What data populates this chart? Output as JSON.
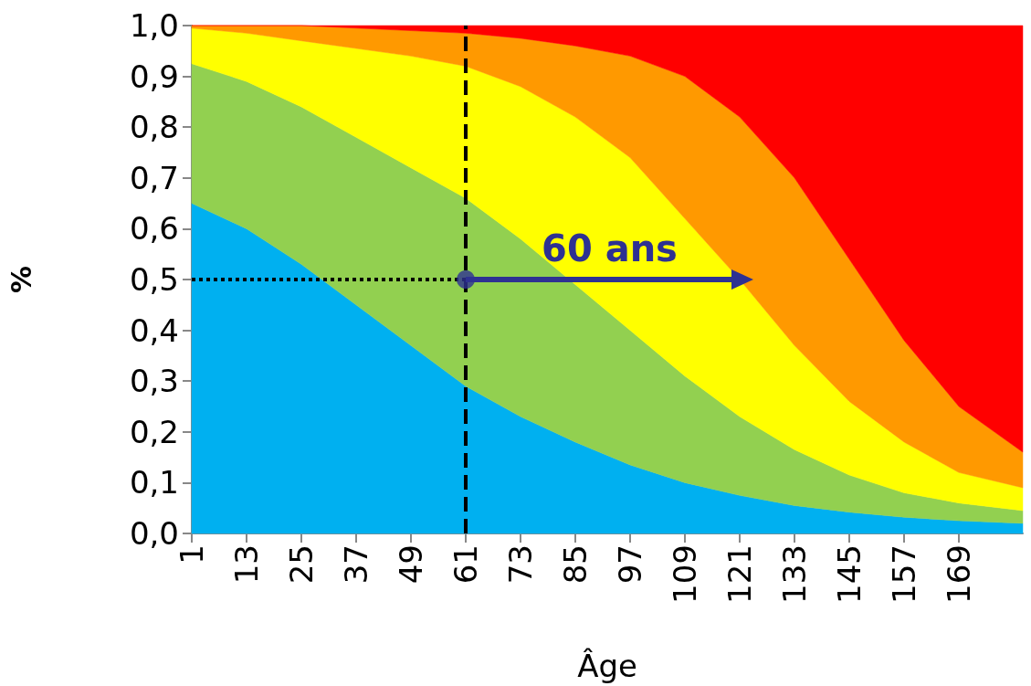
{
  "chart_data": {
    "type": "area",
    "stacked": true,
    "xlabel": "Âge",
    "ylabel": "%",
    "x": [
      1,
      13,
      25,
      37,
      49,
      61,
      73,
      85,
      97,
      109,
      121,
      133,
      145,
      157,
      169,
      183
    ],
    "xlim": [
      1,
      183
    ],
    "xticks": [
      1,
      13,
      25,
      37,
      49,
      61,
      73,
      85,
      97,
      109,
      121,
      133,
      145,
      157,
      169
    ],
    "ylim": [
      0,
      1
    ],
    "yticks": [
      {
        "value": 0,
        "label": "0,0"
      },
      {
        "value": 0.1,
        "label": "0,1"
      },
      {
        "value": 0.2,
        "label": "0,2"
      },
      {
        "value": 0.3,
        "label": "0,3"
      },
      {
        "value": 0.4,
        "label": "0,4"
      },
      {
        "value": 0.5,
        "label": "0,5"
      },
      {
        "value": 0.6,
        "label": "0,6"
      },
      {
        "value": 0.7,
        "label": "0,7"
      },
      {
        "value": 0.8,
        "label": "0,8"
      },
      {
        "value": 0.9,
        "label": "0,9"
      },
      {
        "value": 1,
        "label": "1,0"
      }
    ],
    "series": [
      {
        "color": "#00b0f0",
        "values": [
          0.65,
          0.6,
          0.53,
          0.45,
          0.37,
          0.29,
          0.23,
          0.18,
          0.135,
          0.1,
          0.075,
          0.055,
          0.042,
          0.032,
          0.025,
          0.02
        ]
      },
      {
        "color": "#92d050",
        "values": [
          0.275,
          0.29,
          0.31,
          0.33,
          0.35,
          0.37,
          0.35,
          0.31,
          0.265,
          0.21,
          0.155,
          0.11,
          0.073,
          0.048,
          0.035,
          0.025
        ]
      },
      {
        "color": "#ffff00",
        "values": [
          0.07,
          0.095,
          0.13,
          0.175,
          0.22,
          0.26,
          0.3,
          0.33,
          0.34,
          0.31,
          0.27,
          0.205,
          0.145,
          0.1,
          0.06,
          0.045
        ]
      },
      {
        "color": "#ff9900",
        "values": [
          0.005,
          0.015,
          0.03,
          0.04,
          0.05,
          0.065,
          0.095,
          0.14,
          0.2,
          0.28,
          0.32,
          0.33,
          0.28,
          0.2,
          0.13,
          0.07
        ]
      },
      {
        "color": "#ff0000",
        "values": [
          0,
          0,
          0,
          0.005,
          0.01,
          0.015,
          0.025,
          0.04,
          0.06,
          0.1,
          0.18,
          0.3,
          0.46,
          0.62,
          0.75,
          0.84
        ]
      }
    ],
    "ref_lines": [
      {
        "axis": "x",
        "value": 61,
        "color": "#000000",
        "line_style": "dashed"
      },
      {
        "axis": "y",
        "value": 0.5,
        "color": "#000000",
        "line_style": "dotted"
      }
    ],
    "annotations": [
      {
        "text": "60 ans",
        "x": 61,
        "y": 0.5
      }
    ]
  }
}
